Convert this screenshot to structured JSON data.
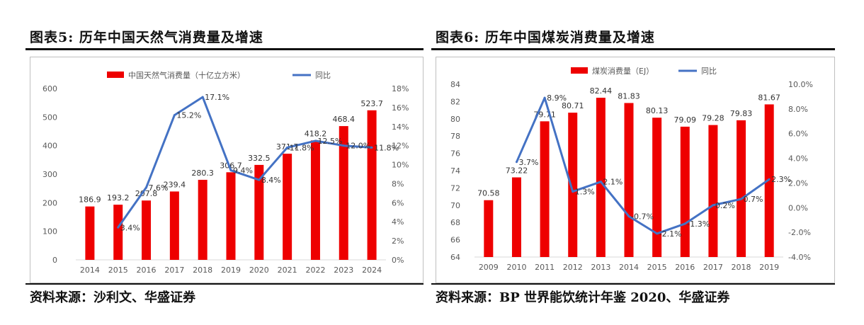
{
  "colors": {
    "bar": "#ee0000",
    "line": "#4472c4",
    "axis_text": "#595959",
    "grid": "#d9d9d9"
  },
  "left": {
    "title": "图表5:   历年中国天然气消费量及增速",
    "source": "资料来源：沙利文、华盛证券"
  },
  "right": {
    "title": "图表6:   历年中国煤炭消费量及增速",
    "source": "资料来源：BP 世界能饮统计年鉴 2020、华盛证券"
  },
  "chart_data": [
    {
      "type": "bar",
      "categories": [
        "2014",
        "2015",
        "2016",
        "2017",
        "2018",
        "2019",
        "2020",
        "2021",
        "2022",
        "2023",
        "2024"
      ],
      "series": [
        {
          "name": "中国天然气消费量（十亿立方米）",
          "type": "bar",
          "axis": "left",
          "values": [
            186.9,
            193.2,
            207.8,
            239.4,
            280.3,
            306.7,
            332.5,
            371.7,
            418.2,
            468.4,
            523.7
          ],
          "labels": [
            "186.9",
            "193.2",
            "207.8",
            "239.4",
            "280.3",
            "306.7",
            "332.5",
            "371.7",
            "418.2",
            "468.4",
            "523.7"
          ]
        },
        {
          "name": "同比",
          "type": "line",
          "axis": "right",
          "values": [
            null,
            3.4,
            7.6,
            15.2,
            17.1,
            9.4,
            8.4,
            11.8,
            12.5,
            12.0,
            11.8
          ],
          "labels": [
            "",
            "3.4%",
            "7.6%",
            "15.2%",
            "17.1%",
            "9.4%",
            "8.4%",
            "11.8%",
            "12.5%",
            "12.0%",
            "11.8%"
          ]
        }
      ],
      "ylim": [
        0,
        600
      ],
      "yticks": [
        "0",
        "100",
        "200",
        "300",
        "400",
        "500",
        "600"
      ],
      "y2lim": [
        0,
        18
      ],
      "y2ticks": [
        "0%",
        "2%",
        "4%",
        "6%",
        "8%",
        "10%",
        "12%",
        "14%",
        "16%",
        "18%"
      ],
      "grid": false,
      "legend": "top"
    },
    {
      "type": "bar",
      "categories": [
        "2009",
        "2010",
        "2011",
        "2012",
        "2013",
        "2014",
        "2015",
        "2016",
        "2017",
        "2018",
        "2019"
      ],
      "series": [
        {
          "name": "煤炭消费量（EJ）",
          "type": "bar",
          "axis": "left",
          "values": [
            70.58,
            73.22,
            79.71,
            80.71,
            82.44,
            81.83,
            80.13,
            79.09,
            79.28,
            79.83,
            81.67
          ],
          "labels": [
            "70.58",
            "73.22",
            "79.71",
            "80.71",
            "82.44",
            "81.83",
            "80.13",
            "79.09",
            "79.28",
            "79.83",
            "81.67"
          ]
        },
        {
          "name": "同比",
          "type": "line",
          "axis": "right",
          "values": [
            null,
            3.7,
            8.9,
            1.3,
            2.1,
            -0.7,
            -2.1,
            -1.3,
            0.2,
            0.7,
            2.3
          ],
          "labels": [
            "",
            "3.7%",
            "8.9%",
            "1.3%",
            "2.1%",
            "-0.7%",
            "-2.1%",
            "-1.3%",
            "0.2%",
            "0.7%",
            "2.3%"
          ]
        }
      ],
      "ylim": [
        64,
        84
      ],
      "yticks": [
        "64",
        "66",
        "68",
        "70",
        "72",
        "74",
        "76",
        "78",
        "80",
        "82",
        "84"
      ],
      "y2lim": [
        -4,
        10
      ],
      "y2ticks": [
        "-4.0%",
        "-2.0%",
        "0.0%",
        "2.0%",
        "4.0%",
        "6.0%",
        "8.0%",
        "10.0%"
      ],
      "grid": false,
      "legend": "top"
    }
  ]
}
